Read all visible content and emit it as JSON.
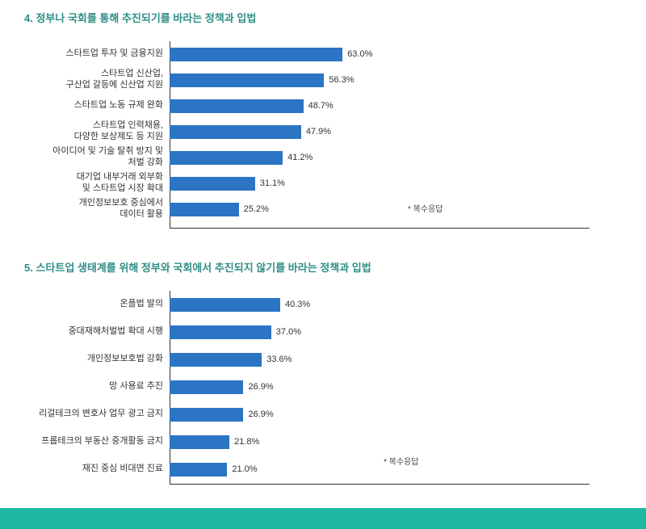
{
  "chart4": {
    "type": "bar",
    "title": "4. 정부나 국회를 통해 추진되기를 바라는 정책과 입법",
    "title_color": "#2f8e87",
    "bar_color": "#2b75c4",
    "max_scale": 100,
    "footnote": "* 복수응답",
    "items": [
      {
        "label": "스타트업 투자 및 금융지원",
        "value": 63.0,
        "display": "63.0%"
      },
      {
        "label": "스타트업 신산업,\n구산업 갈등에 신산업 지원",
        "value": 56.3,
        "display": "56.3%"
      },
      {
        "label": "스타트업 노동 규제 완화",
        "value": 48.7,
        "display": "48.7%"
      },
      {
        "label": "스타트업 인력채용,\n다양한 보상제도 등 지원",
        "value": 47.9,
        "display": "47.9%"
      },
      {
        "label": "아이디어 및 기술 탈취 방지 및\n처벌 강화",
        "value": 41.2,
        "display": "41.2%"
      },
      {
        "label": "대기업 내부거래 외부화\n및 스타트업 시장 확대",
        "value": 31.1,
        "display": "31.1%"
      },
      {
        "label": "개인정보보호 중심에서\n데이터 활용",
        "value": 25.2,
        "display": "25.2%"
      }
    ]
  },
  "chart5": {
    "type": "bar",
    "title": "5. 스타트업 생태계를 위해 정부와 국회에서 추진되지 않기를 바라는 정책과 입법",
    "title_color": "#2f8e87",
    "bar_color": "#2b75c4",
    "max_scale": 100,
    "footnote": "* 복수응답",
    "items": [
      {
        "label": "온플법 발의",
        "value": 40.3,
        "display": "40.3%"
      },
      {
        "label": "중대재해처벌법 확대 시행",
        "value": 37.0,
        "display": "37.0%"
      },
      {
        "label": "개인정보보호법 강화",
        "value": 33.6,
        "display": "33.6%"
      },
      {
        "label": "망 사용료 추진",
        "value": 26.9,
        "display": "26.9%"
      },
      {
        "label": "리걸테크의 변호사 업무 광고 금지",
        "value": 26.9,
        "display": "26.9%"
      },
      {
        "label": "프롭테크의 부동산 중개활동 금지",
        "value": 21.8,
        "display": "21.8%"
      },
      {
        "label": "재진 중심 비대면 진료",
        "value": 21.0,
        "display": "21.0%"
      }
    ]
  },
  "footer_band_color": "#1fb8a5",
  "bar_width_scale": 3.4
}
